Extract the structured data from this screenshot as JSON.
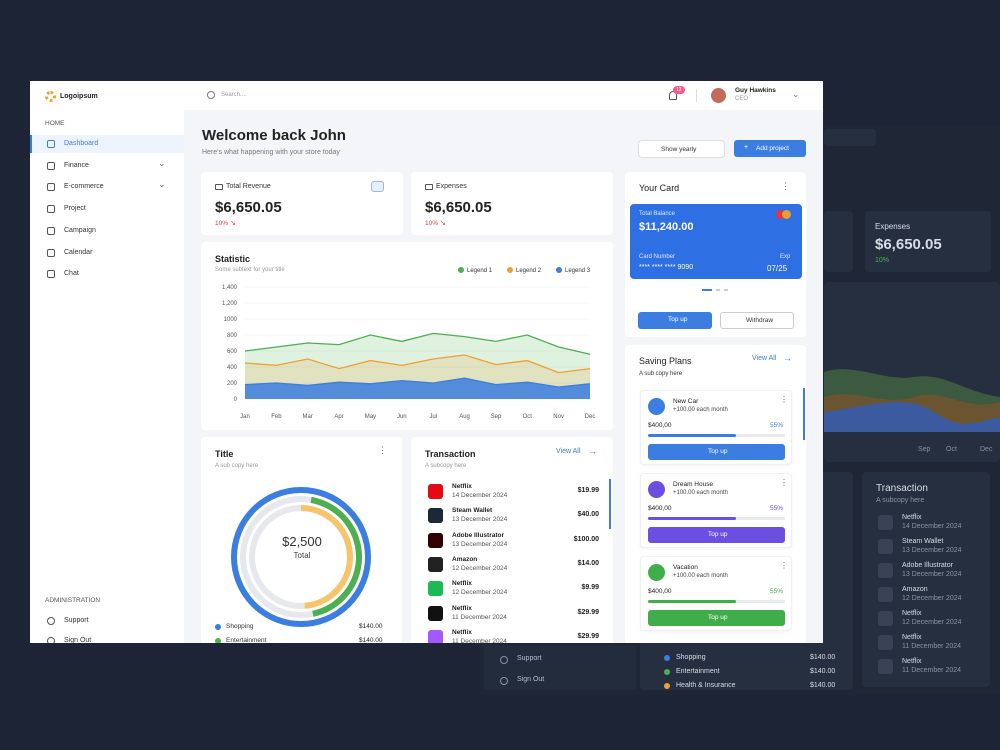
{
  "brand": "Logoipsum",
  "search_placeholder": "Search....",
  "notification_count": 12,
  "user": {
    "name": "Guy Hawkins",
    "role": "CEO"
  },
  "sidebar": {
    "home_heading": "HOME",
    "items": [
      "Dashboard",
      "Finance",
      "E-commerce",
      "Project",
      "Campaign",
      "Calendar",
      "Chat"
    ],
    "admin_heading": "ADMINISTRATION",
    "admin_items": [
      "Support",
      "Sign Out"
    ]
  },
  "header": {
    "title": "Welcome back John",
    "subtitle": "Here's what happening with your store today",
    "filter": "Show yearly",
    "button": "Add project"
  },
  "kpis": [
    {
      "label": "Total Revenue",
      "value": "$6,650.05",
      "change": "10%"
    },
    {
      "label": "Expenses",
      "value": "$6,650.05",
      "change": "10%"
    }
  ],
  "statistic": {
    "type": "area",
    "title": "Statistic",
    "subtitle": "Some subtext for your title",
    "categories": [
      "Jan",
      "Feb",
      "Mar",
      "Apr",
      "May",
      "Jun",
      "Jul",
      "Aug",
      "Sep",
      "Oct",
      "Nov",
      "Dec"
    ],
    "series": [
      {
        "name": "Legend 1",
        "color": "#4caf50",
        "values": [
          600,
          650,
          700,
          680,
          800,
          720,
          820,
          780,
          720,
          800,
          650,
          560
        ]
      },
      {
        "name": "Legend 2",
        "color": "#f0a030",
        "values": [
          450,
          420,
          500,
          380,
          480,
          420,
          500,
          550,
          430,
          480,
          330,
          380
        ]
      },
      {
        "name": "Legend 3",
        "color": "#3b7de0",
        "values": [
          180,
          200,
          170,
          210,
          190,
          230,
          200,
          260,
          180,
          210,
          150,
          190
        ]
      }
    ],
    "ylim": [
      0,
      1400
    ],
    "yticks": [
      0,
      200,
      400,
      600,
      800,
      1000,
      {
        "value": 1200,
        "label": "1,200"
      },
      {
        "value": 1400,
        "label": "1,400"
      }
    ],
    "grid": true
  },
  "donut": {
    "title": "Title",
    "subtitle": "A sub copy here",
    "center_value": "$2,500",
    "center_label": "Total",
    "legend": [
      {
        "name": "Shopping",
        "value": "$140.00",
        "color": "#3b7de0"
      },
      {
        "name": "Entertainment",
        "value": "$140.00",
        "color": "#4caf50"
      }
    ]
  },
  "transactions": {
    "title": "Transaction",
    "subtitle": "A subcopy here",
    "link": "View All",
    "items": [
      {
        "name": "Netflix",
        "date": "14 December 2024",
        "amount": "$19.99",
        "color": "#e50914"
      },
      {
        "name": "Steam Wallet",
        "date": "13 December 2024",
        "amount": "$40.00",
        "color": "#1b2838"
      },
      {
        "name": "Adobe Illustrator",
        "date": "13 December 2024",
        "amount": "$100.00",
        "color": "#330000"
      },
      {
        "name": "Amazon",
        "date": "12 December 2024",
        "amount": "$14.00",
        "color": "#222222"
      },
      {
        "name": "Netflix",
        "date": "12 December 2024",
        "amount": "$9.99",
        "color": "#1db954"
      },
      {
        "name": "Netflix",
        "date": "11 December 2024",
        "amount": "$29.99",
        "color": "#111111"
      },
      {
        "name": "Netflix",
        "date": "11 December 2024",
        "amount": "$29.99",
        "color": "#a259ff"
      }
    ]
  },
  "card": {
    "title": "Your Card",
    "balance_label": "Total Balance",
    "balance": "$11,240.00",
    "number_label": "Card Number",
    "number": "**** **** **** 9090",
    "exp_label": "Exp",
    "exp": "07/25",
    "topup": "Top up",
    "withdraw": "Withdraw"
  },
  "saving": {
    "title": "Saving Plans",
    "subtitle": "A sub copy here",
    "link": "View All",
    "plans": [
      {
        "name": "New Car",
        "rate": "+100.00 each month",
        "amount": "$400,00",
        "percent": "55%",
        "button": "Top up",
        "color": "#3b7de0"
      },
      {
        "name": "Dream House",
        "rate": "+100.00 each month",
        "amount": "$400,00",
        "percent": "55%",
        "button": "Top up",
        "color": "#6b4fe0"
      },
      {
        "name": "Vacation",
        "rate": "+100.00 each month",
        "amount": "$400,00",
        "percent": "55%",
        "button": "Top up",
        "color": "#3fae4a"
      }
    ]
  },
  "background_screen": {
    "expenses_label": "Expenses",
    "expenses_value": "$6,650.05",
    "expenses_change": "10%",
    "months": [
      "Sep",
      "Oct",
      "Dec"
    ],
    "transaction_title": "Transaction",
    "transaction_subtitle": "A subcopy here",
    "transactions": [
      {
        "name": "Netflix",
        "date": "14 December 2024"
      },
      {
        "name": "Steam Wallet",
        "date": "13 December 2024"
      },
      {
        "name": "Adobe Illustrator",
        "date": "13 December 2024"
      },
      {
        "name": "Amazon",
        "date": "12 December 2024"
      },
      {
        "name": "Netflix",
        "date": "12 December 2024"
      },
      {
        "name": "Netflix",
        "date": "11 December 2024"
      },
      {
        "name": "Netflix",
        "date": "11 December 2024"
      }
    ],
    "admin_items": [
      "Support",
      "Sign Out"
    ],
    "legend": [
      {
        "name": "Shopping",
        "value": "$140.00"
      },
      {
        "name": "Entertainment",
        "value": "$140.00"
      },
      {
        "name": "Health & Insurance",
        "value": "$140.00"
      }
    ]
  }
}
